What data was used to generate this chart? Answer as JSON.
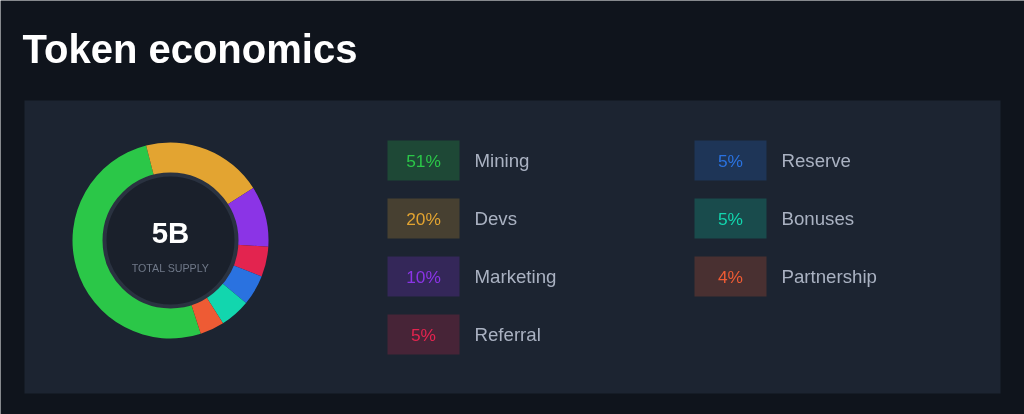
{
  "chart_data": {
    "type": "donut",
    "title": "Token economics",
    "categories": [
      "Mining",
      "Devs",
      "Marketing",
      "Referral",
      "Reserve",
      "Bonuses",
      "Partnership"
    ],
    "values": [
      51,
      20,
      10,
      5,
      5,
      5,
      4
    ],
    "colors": [
      "#2bc748",
      "#e3a431",
      "#8b34e6",
      "#e3244f",
      "#2a72e0",
      "#12d6ae",
      "#ee5b34"
    ],
    "annotations": [
      "5B",
      "TOTAL SUPPLY"
    ],
    "value_labels": [
      "51%",
      "20%",
      "10%",
      "5%",
      "5%",
      "5%",
      "4%"
    ],
    "legend": "right"
  }
}
